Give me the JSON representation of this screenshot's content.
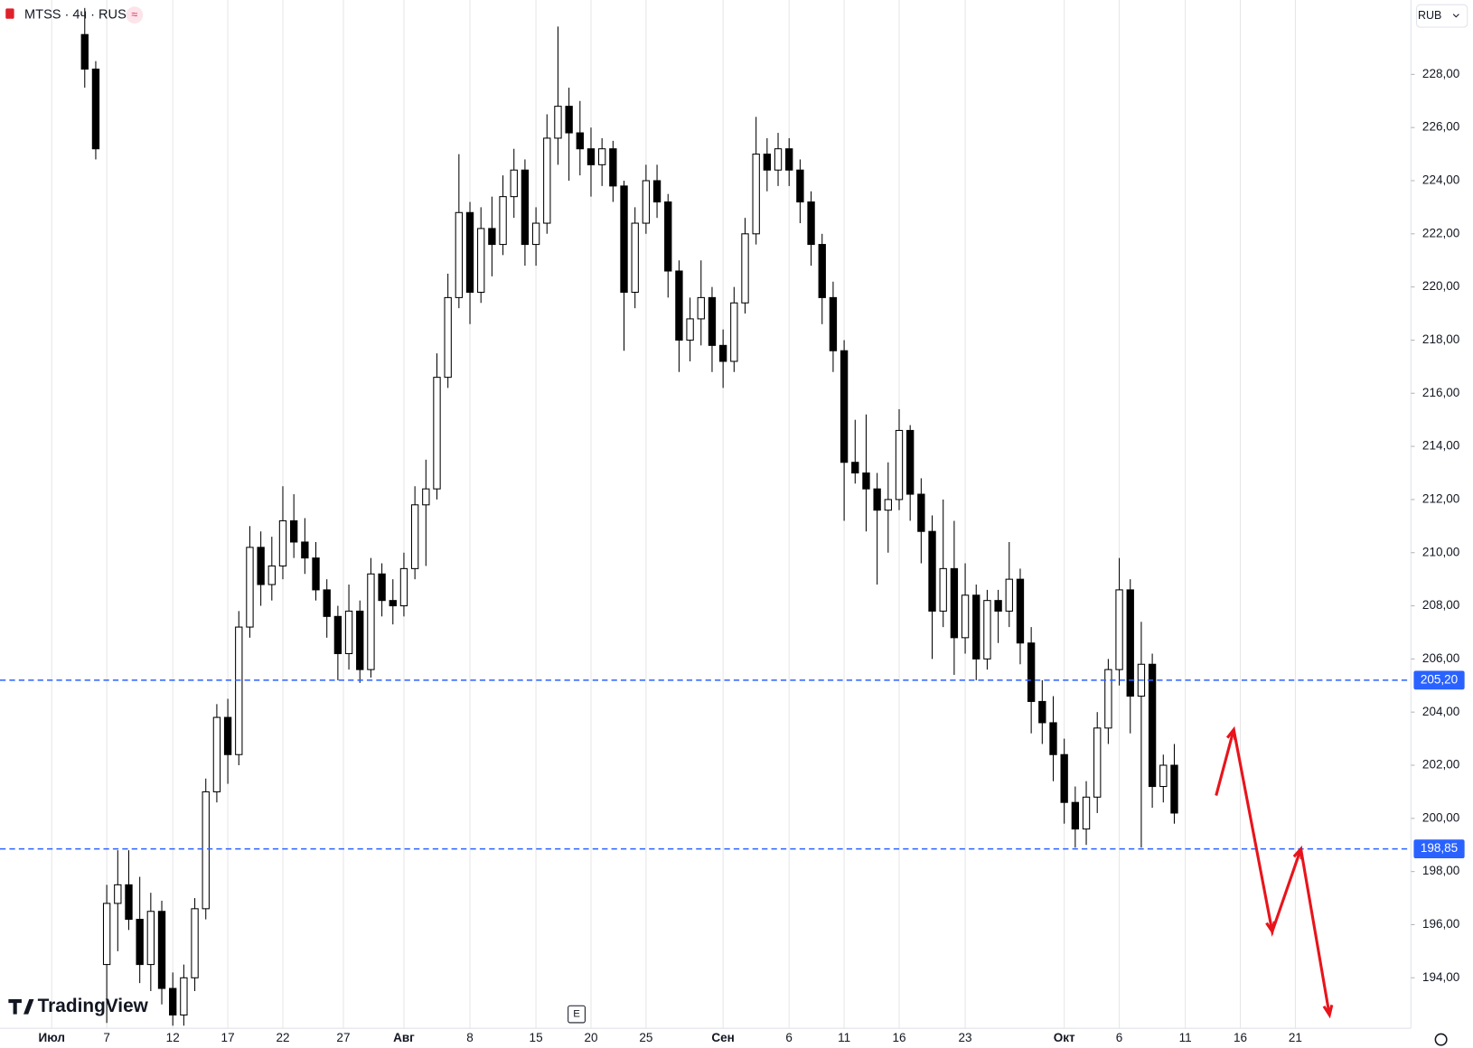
{
  "chart_data": {
    "type": "candlestick",
    "title": "MTSS · 4ч · RUS",
    "title_badge": "≈",
    "currency": "RUB",
    "brand": "TradingView",
    "event_marker": "E",
    "up_color": "#ffffff",
    "down_color": "#000000",
    "border_color": "#000000",
    "grid": true,
    "xlim": [
      -4.7,
      123.5
    ],
    "ylim": [
      192.1,
      230.8
    ],
    "xticks": [
      {
        "value": 0,
        "label": "Июл"
      },
      {
        "value": 5,
        "label": "7"
      },
      {
        "value": 11,
        "label": "12"
      },
      {
        "value": 16,
        "label": "17"
      },
      {
        "value": 21,
        "label": "22"
      },
      {
        "value": 26.5,
        "label": "27"
      },
      {
        "value": 32,
        "label": "Авг"
      },
      {
        "value": 38,
        "label": "8"
      },
      {
        "value": 44,
        "label": "15"
      },
      {
        "value": 49,
        "label": "20"
      },
      {
        "value": 54,
        "label": "25"
      },
      {
        "value": 61,
        "label": "Сен"
      },
      {
        "value": 67,
        "label": "6"
      },
      {
        "value": 72,
        "label": "11"
      },
      {
        "value": 77,
        "label": "16"
      },
      {
        "value": 83,
        "label": "23"
      },
      {
        "value": 92,
        "label": "Окт"
      },
      {
        "value": 97,
        "label": "6"
      },
      {
        "value": 103,
        "label": "11"
      },
      {
        "value": 108,
        "label": "16"
      },
      {
        "value": 113,
        "label": "21"
      }
    ],
    "yticks": [
      {
        "value": 194,
        "label": "194,00"
      },
      {
        "value": 196,
        "label": "196,00"
      },
      {
        "value": 198,
        "label": "198,00"
      },
      {
        "value": 200,
        "label": "200,00"
      },
      {
        "value": 202,
        "label": "202,00"
      },
      {
        "value": 204,
        "label": "204,00"
      },
      {
        "value": 206,
        "label": "206,00"
      },
      {
        "value": 208,
        "label": "208,00"
      },
      {
        "value": 210,
        "label": "210,00"
      },
      {
        "value": 212,
        "label": "212,00"
      },
      {
        "value": 214,
        "label": "214,00"
      },
      {
        "value": 216,
        "label": "216,00"
      },
      {
        "value": 218,
        "label": "218,00"
      },
      {
        "value": 220,
        "label": "220,00"
      },
      {
        "value": 222,
        "label": "222,00"
      },
      {
        "value": 224,
        "label": "224,00"
      },
      {
        "value": 226,
        "label": "226,00"
      },
      {
        "value": 228,
        "label": "228,00"
      }
    ],
    "hlines": [
      {
        "value": 205.2,
        "label": "205,20",
        "color": "#2962ff"
      },
      {
        "value": 198.85,
        "label": "198,85",
        "color": "#2962ff"
      }
    ],
    "projection": {
      "color": "#e8141b",
      "x": [
        105.8,
        107.4,
        110.9,
        113.5,
        116.1
      ],
      "y": [
        200.86,
        203.34,
        195.74,
        198.85,
        192.6
      ]
    },
    "x": [
      3,
      4,
      5,
      6,
      7,
      8,
      9,
      10,
      11,
      12,
      13,
      14,
      15,
      16,
      17,
      18,
      19,
      20,
      21,
      22,
      23,
      24,
      25,
      26,
      27,
      28,
      29,
      30,
      31,
      32,
      33,
      34,
      35,
      36,
      37,
      38,
      39,
      40,
      41,
      42,
      43,
      44,
      45,
      46,
      47,
      48,
      49,
      50,
      51,
      52,
      53,
      54,
      55,
      56,
      57,
      58,
      59,
      60,
      61,
      62,
      63,
      64,
      65,
      66,
      67,
      68,
      69,
      70,
      71,
      72,
      73,
      74,
      75,
      76,
      77,
      78,
      79,
      80,
      81,
      82,
      83,
      84,
      85,
      86,
      87,
      88,
      89,
      90,
      91,
      92,
      93,
      94,
      95,
      96,
      97,
      98,
      99,
      100,
      101,
      102
    ],
    "open": [
      229.5,
      228.2,
      194.5,
      196.8,
      197.5,
      196.2,
      194.5,
      196.5,
      193.6,
      192.6,
      194.0,
      196.6,
      201.0,
      203.8,
      202.4,
      207.2,
      210.2,
      208.8,
      209.5,
      211.2,
      210.4,
      209.8,
      208.6,
      207.6,
      206.2,
      207.8,
      205.6,
      209.2,
      208.2,
      208.0,
      209.4,
      211.8,
      212.4,
      216.6,
      219.6,
      222.8,
      219.8,
      222.2,
      221.6,
      223.4,
      224.4,
      221.6,
      222.4,
      225.6,
      226.8,
      225.8,
      225.2,
      224.6,
      225.2,
      223.8,
      219.8,
      222.4,
      224.0,
      223.2,
      220.6,
      218.0,
      218.8,
      219.6,
      217.8,
      217.2,
      219.4,
      222.0,
      225.0,
      224.4,
      225.2,
      224.4,
      223.2,
      221.6,
      219.6,
      217.6,
      213.4,
      213.0,
      212.4,
      211.6,
      212.0,
      214.6,
      212.2,
      210.8,
      207.8,
      209.4,
      206.8,
      208.4,
      206.0,
      208.2,
      207.8,
      209.0,
      206.6,
      204.4,
      203.6,
      202.4,
      200.6,
      199.6,
      200.8,
      203.4,
      205.6,
      208.6,
      204.6,
      205.8,
      201.2,
      202.0
    ],
    "high": [
      230.5,
      228.5,
      197.5,
      198.8,
      198.8,
      197.8,
      197.2,
      196.9,
      194.2,
      194.5,
      197.0,
      201.5,
      204.3,
      204.5,
      207.8,
      211.0,
      210.8,
      210.6,
      212.5,
      212.2,
      211.3,
      210.4,
      209.0,
      208.0,
      208.8,
      208.2,
      209.8,
      209.6,
      209.0,
      210.0,
      212.5,
      213.5,
      217.5,
      220.5,
      225.0,
      223.2,
      223.0,
      223.4,
      224.2,
      225.2,
      224.8,
      223.0,
      226.5,
      229.8,
      227.5,
      227.0,
      226.0,
      225.6,
      225.5,
      224.0,
      223.0,
      224.6,
      224.6,
      223.5,
      221.0,
      219.6,
      221.0,
      220.0,
      218.4,
      220.0,
      222.6,
      226.4,
      225.6,
      225.8,
      225.6,
      224.8,
      223.6,
      222.0,
      220.2,
      218.0,
      215.0,
      215.2,
      213.0,
      213.4,
      215.4,
      214.8,
      212.8,
      211.4,
      212.0,
      211.2,
      209.6,
      208.8,
      208.6,
      208.6,
      210.4,
      209.4,
      207.2,
      205.2,
      204.6,
      203.0,
      201.2,
      201.4,
      204.0,
      206.0,
      209.8,
      209.0,
      207.4,
      206.2,
      202.4,
      202.8
    ],
    "low": [
      227.5,
      224.8,
      192.3,
      195.0,
      195.8,
      193.8,
      193.5,
      193.0,
      192.2,
      192.2,
      193.5,
      196.2,
      200.6,
      201.3,
      202.0,
      206.8,
      208.0,
      208.2,
      209.0,
      209.8,
      209.2,
      208.2,
      206.8,
      205.2,
      205.6,
      205.1,
      205.3,
      207.6,
      207.3,
      207.6,
      209.0,
      209.5,
      212.0,
      216.2,
      219.2,
      218.6,
      219.4,
      220.4,
      221.2,
      222.6,
      220.8,
      220.8,
      222.0,
      224.6,
      224.0,
      224.2,
      223.4,
      223.8,
      223.2,
      217.6,
      219.2,
      222.0,
      222.6,
      219.6,
      216.8,
      217.2,
      217.8,
      216.8,
      216.2,
      216.8,
      219.0,
      221.6,
      223.6,
      223.8,
      223.8,
      222.4,
      220.8,
      218.6,
      216.8,
      211.2,
      212.6,
      210.8,
      208.8,
      210.0,
      211.6,
      211.2,
      209.6,
      206.0,
      207.2,
      205.4,
      206.2,
      205.2,
      205.6,
      206.6,
      207.2,
      205.8,
      203.2,
      202.8,
      201.4,
      199.8,
      198.9,
      199.0,
      200.2,
      202.8,
      205.0,
      203.2,
      198.9,
      200.4,
      200.6,
      199.8
    ],
    "close": [
      228.2,
      225.2,
      196.8,
      197.5,
      196.2,
      194.5,
      196.5,
      193.6,
      192.6,
      194.0,
      196.6,
      201.0,
      203.8,
      202.4,
      207.2,
      210.2,
      208.8,
      209.5,
      211.2,
      210.4,
      209.8,
      208.6,
      207.6,
      206.2,
      207.8,
      205.6,
      209.2,
      208.2,
      208.0,
      209.4,
      211.8,
      212.4,
      216.6,
      219.6,
      222.8,
      219.8,
      222.2,
      221.6,
      223.4,
      224.4,
      221.6,
      222.4,
      225.6,
      226.8,
      225.8,
      225.2,
      224.6,
      225.2,
      223.8,
      219.8,
      222.4,
      224.0,
      223.2,
      220.6,
      218.0,
      218.8,
      219.6,
      217.8,
      217.2,
      219.4,
      222.0,
      225.0,
      224.4,
      225.2,
      224.4,
      223.2,
      221.6,
      219.6,
      217.6,
      213.4,
      213.0,
      212.4,
      211.6,
      212.0,
      214.6,
      212.2,
      210.8,
      207.8,
      209.4,
      206.8,
      208.4,
      206.0,
      208.2,
      207.8,
      209.0,
      206.6,
      204.4,
      203.6,
      202.4,
      200.6,
      199.6,
      200.8,
      203.4,
      205.6,
      208.6,
      204.6,
      205.8,
      201.2,
      202.0,
      200.2
    ]
  }
}
